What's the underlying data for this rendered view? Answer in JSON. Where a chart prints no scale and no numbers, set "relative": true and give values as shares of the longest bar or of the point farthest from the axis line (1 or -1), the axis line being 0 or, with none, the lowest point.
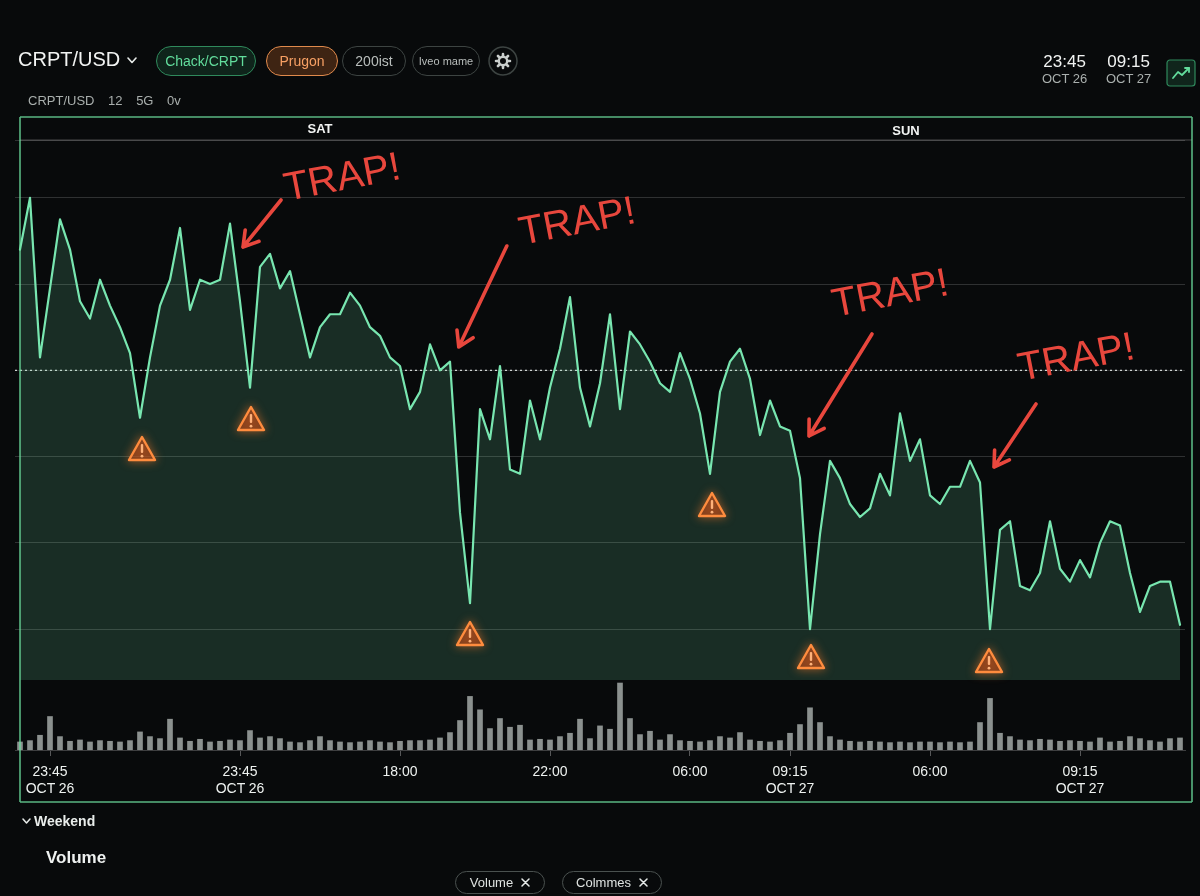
{
  "chart_data": [
    {
      "type": "area",
      "title": "CRPT/USD",
      "subtitle": "CRPT/USD 12 5G 0v",
      "relative": true,
      "grid": "y",
      "tick_labels": false,
      "categories": [
        null,
        null,
        null,
        null,
        null,
        null,
        null,
        null,
        null,
        null,
        null,
        null,
        null,
        null,
        null,
        null,
        null,
        null,
        null,
        null,
        null,
        null,
        null,
        null,
        null,
        null,
        null,
        null,
        null,
        null,
        null,
        null,
        null,
        null,
        null,
        null,
        null,
        null,
        null,
        null,
        null,
        null,
        null,
        null,
        null,
        null,
        null,
        null,
        null,
        null,
        null,
        null,
        null,
        null,
        null,
        null,
        null,
        null,
        null,
        null,
        null,
        null,
        null,
        null,
        null,
        null,
        null,
        null,
        null,
        null,
        null,
        null,
        null,
        null,
        null,
        null,
        null,
        null,
        null,
        null,
        null,
        null,
        null,
        null,
        null,
        null,
        null,
        null,
        null,
        null,
        null,
        null,
        null,
        null,
        null,
        null,
        null,
        null,
        null,
        null,
        null,
        null,
        null,
        null,
        null,
        null,
        null,
        null,
        null,
        null,
        null,
        null,
        null,
        null,
        null,
        null,
        null
      ],
      "color": "#78e6b0",
      "values": [
        0.88,
        1,
        0.63,
        0.79,
        0.95,
        0.88,
        0.76,
        0.72,
        0.81,
        0.75,
        0.7,
        0.64,
        0.49,
        0.63,
        0.75,
        0.81,
        0.93,
        0.74,
        0.81,
        0.8,
        0.81,
        0.94,
        0.76,
        0.56,
        0.84,
        0.87,
        0.79,
        0.83,
        0.73,
        0.63,
        0.7,
        0.73,
        0.73,
        0.78,
        0.75,
        0.7,
        0.68,
        0.63,
        0.61,
        0.51,
        0.55,
        0.66,
        0.6,
        0.62,
        0.27,
        0.06,
        0.51,
        0.44,
        0.61,
        0.37,
        0.36,
        0.53,
        0.44,
        0.56,
        0.65,
        0.77,
        0.56,
        0.47,
        0.57,
        0.73,
        0.51,
        0.69,
        0.66,
        0.62,
        0.57,
        0.55,
        0.64,
        0.58,
        0.5,
        0.36,
        0.55,
        0.62,
        0.65,
        0.58,
        0.45,
        0.53,
        0.47,
        0.46,
        0.35,
        0,
        0.22,
        0.39,
        0.35,
        0.29,
        0.26,
        0.28,
        0.36,
        0.31,
        0.5,
        0.39,
        0.44,
        0.31,
        0.29,
        0.33,
        0.33,
        0.39,
        0.34,
        0,
        0.23,
        0.25,
        0.1,
        0.09,
        0.13,
        0.25,
        0.14,
        0.11,
        0.16,
        0.12,
        0.2,
        0.25,
        0.24,
        0.13,
        0.04,
        0.1,
        0.11,
        0.11,
        0.01
      ],
      "ref_lines": [
        {
          "axis": "y",
          "value": 0.6,
          "color": "#cfd4d2",
          "line_style": "dotted"
        }
      ],
      "annotations": [
        "Chack/CRPT",
        "Prugon",
        "200ist",
        "Iveo mame",
        "23:45\nOCT 26",
        "09:15\nOCT 27",
        "SAT",
        "SUN",
        "TRAP!",
        "TRAP!",
        "TRAP!",
        "TRAP!",
        "Weekend",
        "Volume",
        "Volume",
        "Colmmes"
      ]
    },
    {
      "type": "bar",
      "relative": true,
      "tick_labels": "x",
      "categories": [
        null,
        null,
        null,
        "23:45\nOCT 26",
        null,
        null,
        null,
        null,
        null,
        null,
        null,
        null,
        null,
        null,
        null,
        null,
        null,
        null,
        null,
        null,
        null,
        null,
        "23:45\nOCT 26",
        null,
        null,
        null,
        null,
        null,
        null,
        null,
        null,
        null,
        null,
        null,
        null,
        null,
        null,
        null,
        "18:00",
        null,
        null,
        null,
        null,
        null,
        null,
        null,
        null,
        null,
        null,
        null,
        null,
        null,
        null,
        "22:00",
        null,
        null,
        null,
        null,
        null,
        null,
        null,
        null,
        null,
        null,
        null,
        null,
        null,
        "06:00",
        null,
        null,
        null,
        null,
        null,
        null,
        null,
        null,
        null,
        "09:15\nOCT 27",
        null,
        null,
        null,
        null,
        null,
        null,
        null,
        null,
        null,
        null,
        null,
        null,
        null,
        "06:00",
        null,
        null,
        null,
        null,
        null,
        null,
        null,
        null,
        null,
        null,
        null,
        null,
        null,
        null,
        "09:15\nOCT 27",
        null,
        null,
        null,
        null,
        null,
        null,
        null,
        null,
        null,
        null
      ],
      "color": "#8b918f",
      "values": [
        0.12,
        0.14,
        0.22,
        0.5,
        0.2,
        0.13,
        0.15,
        0.12,
        0.14,
        0.13,
        0.12,
        0.14,
        0.27,
        0.2,
        0.17,
        0.46,
        0.18,
        0.13,
        0.16,
        0.12,
        0.13,
        0.15,
        0.14,
        0.29,
        0.18,
        0.2,
        0.17,
        0.12,
        0.11,
        0.14,
        0.2,
        0.14,
        0.12,
        0.11,
        0.12,
        0.14,
        0.12,
        0.11,
        0.13,
        0.14,
        0.14,
        0.15,
        0.18,
        0.26,
        0.44,
        0.8,
        0.6,
        0.32,
        0.47,
        0.34,
        0.37,
        0.15,
        0.16,
        0.15,
        0.2,
        0.25,
        0.46,
        0.17,
        0.36,
        0.31,
        1,
        0.47,
        0.23,
        0.28,
        0.15,
        0.23,
        0.14,
        0.13,
        0.12,
        0.14,
        0.2,
        0.18,
        0.26,
        0.15,
        0.13,
        0.12,
        0.14,
        0.25,
        0.38,
        0.63,
        0.41,
        0.2,
        0.15,
        0.13,
        0.12,
        0.13,
        0.12,
        0.11,
        0.12,
        0.11,
        0.12,
        0.12,
        0.11,
        0.12,
        0.11,
        0.12,
        0.41,
        0.77,
        0.25,
        0.2,
        0.15,
        0.14,
        0.16,
        0.15,
        0.13,
        0.14,
        0.13,
        0.12,
        0.18,
        0.12,
        0.13,
        0.2,
        0.17,
        0.14,
        0.12,
        0.17,
        0.18
      ]
    }
  ]
}
